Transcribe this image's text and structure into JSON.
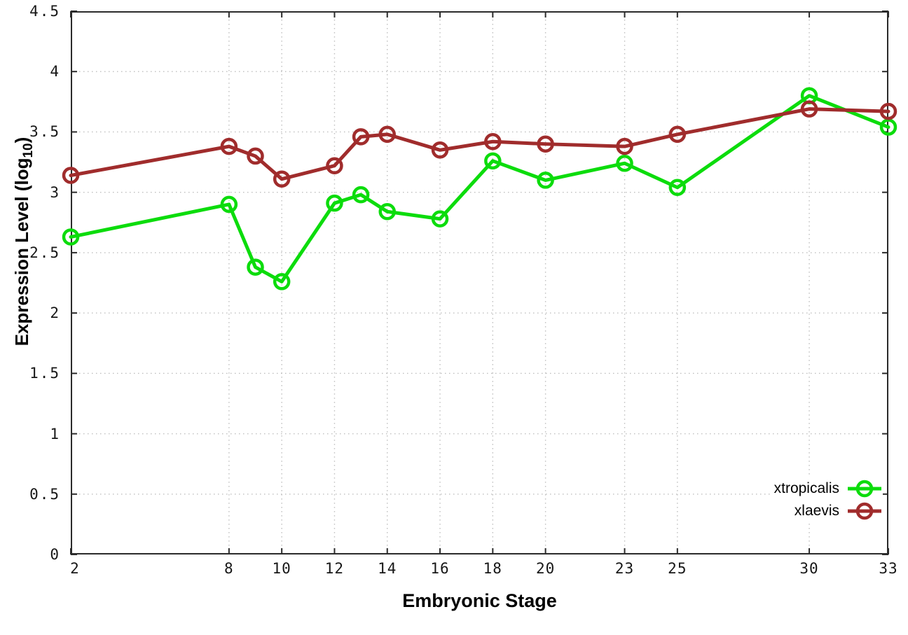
{
  "figure": {
    "background": "#ffffff",
    "border_color": "#2b2b2b",
    "grid_color": "#bfbfbf",
    "tick_color": "#2b2b2b"
  },
  "chart_data": {
    "type": "line",
    "title": "",
    "xlabel": "Embryonic Stage",
    "ylabel": "Expression Level (log10)",
    "ylabel_parts": {
      "main": "Expression Level (log",
      "sub": "10",
      "close": ")"
    },
    "xlim": [
      2,
      33
    ],
    "ylim": [
      0,
      4.5
    ],
    "x_ticks": [
      2,
      8,
      10,
      12,
      14,
      16,
      18,
      20,
      23,
      25,
      30,
      33
    ],
    "x_tick_labels": [
      "2",
      "8",
      "10",
      "12",
      "14",
      "16",
      "18",
      "20",
      "23",
      "25",
      "30",
      "33"
    ],
    "y_ticks": [
      0,
      0.5,
      1,
      1.5,
      2,
      2.5,
      3,
      3.5,
      4,
      4.5
    ],
    "y_tick_labels": [
      "0",
      "0.5",
      "1",
      "1.5",
      "2",
      "2.5",
      "3",
      "3.5",
      "4",
      "4.5"
    ],
    "grid": true,
    "legend_position": "bottom-right",
    "x": [
      2,
      8,
      9,
      10,
      12,
      13,
      14,
      16,
      18,
      20,
      23,
      25,
      30,
      33
    ],
    "series": [
      {
        "name": "xtropicalis",
        "color": "#0cdc0c",
        "values": [
          2.63,
          2.9,
          2.38,
          2.26,
          2.91,
          2.98,
          2.84,
          2.78,
          3.26,
          3.1,
          3.24,
          3.04,
          3.8,
          3.54
        ]
      },
      {
        "name": "xlaevis",
        "color": "#a02c2c",
        "values": [
          3.14,
          3.38,
          3.3,
          3.11,
          3.22,
          3.46,
          3.48,
          3.35,
          3.42,
          3.4,
          3.38,
          3.48,
          3.69,
          3.67
        ]
      }
    ]
  }
}
